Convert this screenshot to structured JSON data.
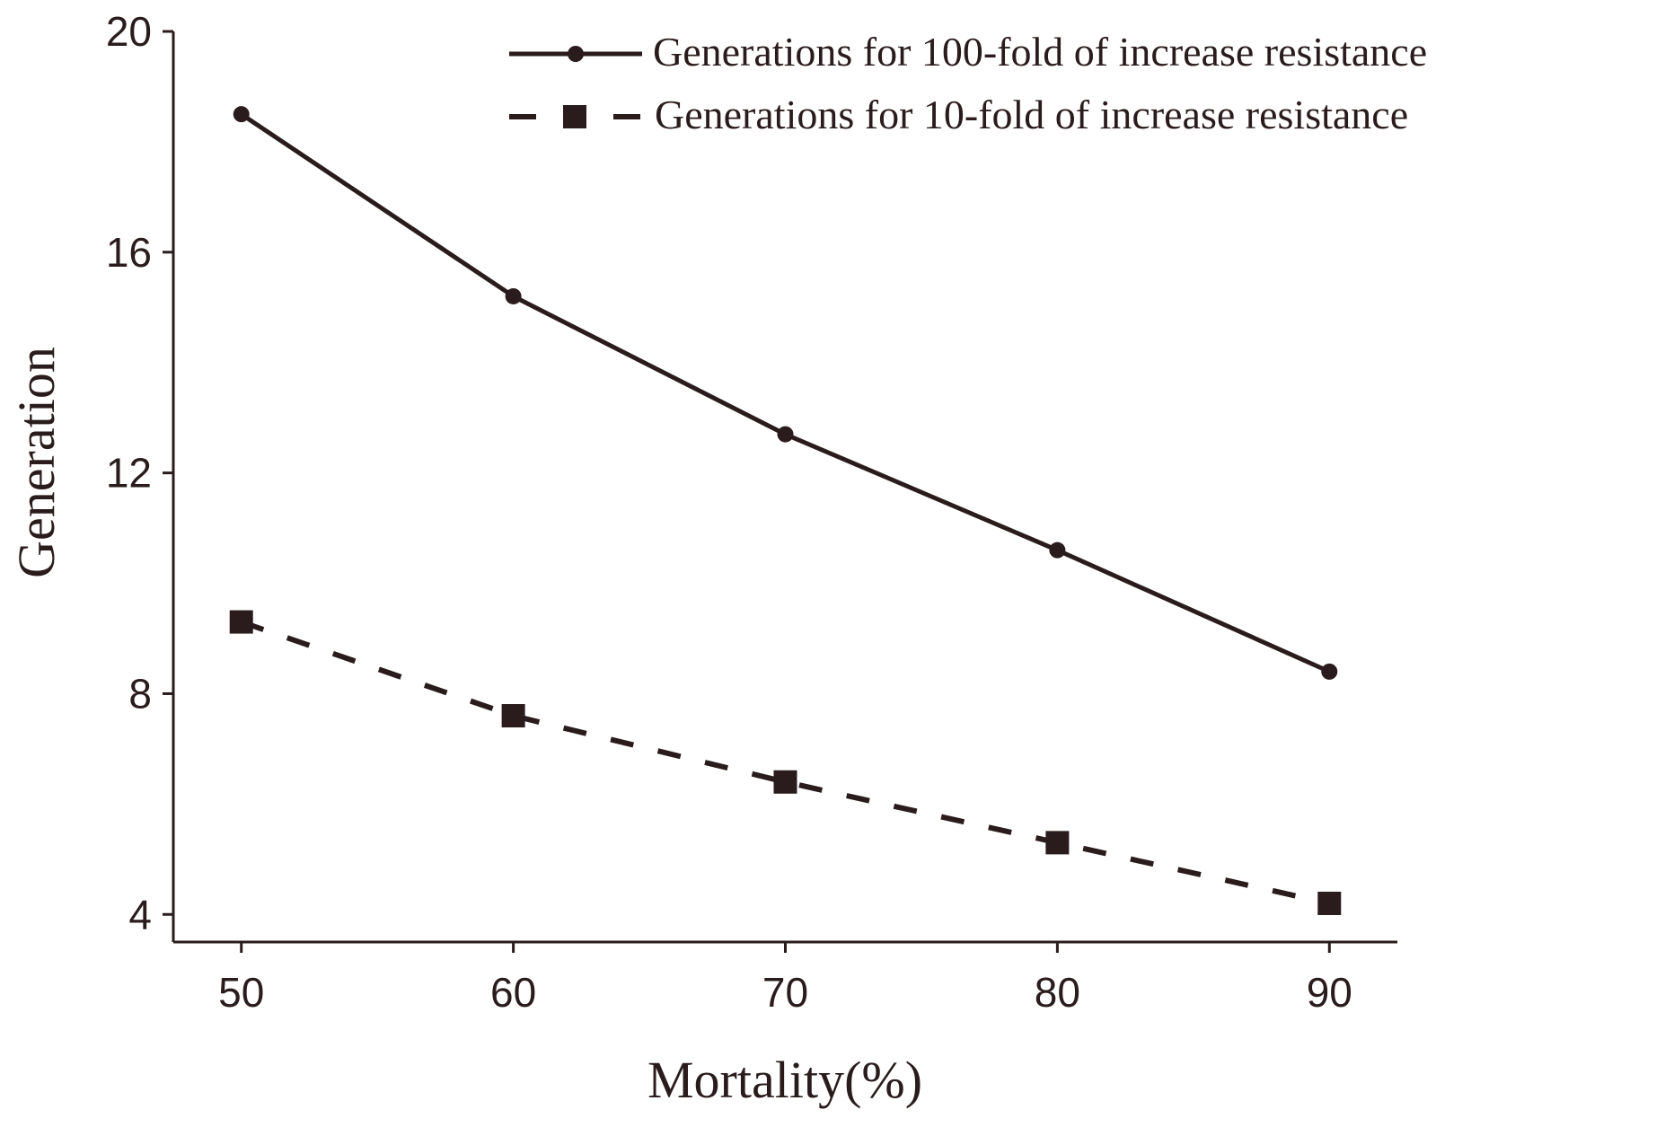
{
  "chart_data": {
    "type": "line",
    "title": "",
    "xlabel": "Mortality(%)",
    "ylabel": "Generation",
    "x": [
      50,
      60,
      70,
      80,
      90
    ],
    "xticks": [
      "50",
      "60",
      "70",
      "80",
      "90"
    ],
    "yticks": [
      "4",
      "8",
      "12",
      "16",
      "20"
    ],
    "xlim": [
      47.5,
      92.5
    ],
    "ylim": [
      3.5,
      20
    ],
    "grid": false,
    "legend_position": "top-right",
    "colors": {
      "ink": "#2a1c1c"
    },
    "series": [
      {
        "name": "Generations for 100-fold of increase resistance",
        "style": "solid",
        "marker": "circle",
        "values": [
          18.5,
          15.2,
          12.7,
          10.6,
          8.4
        ]
      },
      {
        "name": "Generations for 10-fold of increase resistance",
        "style": "dashed",
        "marker": "square",
        "values": [
          9.3,
          7.6,
          6.4,
          5.3,
          4.2
        ]
      }
    ]
  }
}
